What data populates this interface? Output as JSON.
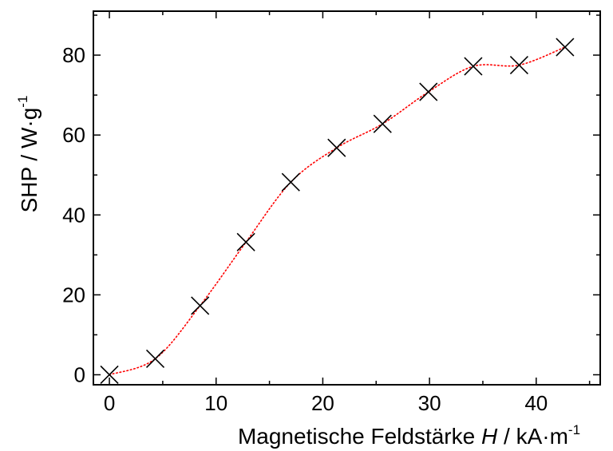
{
  "chart_data": {
    "type": "scatter",
    "x_label": {
      "text": "Magnetische Feldstärke ",
      "italic": "H",
      "unit": " / kA·m",
      "sup": "-1"
    },
    "y_label": {
      "text": "SHP / W·g",
      "sup": "-1"
    },
    "xlim": [
      -1.5,
      46
    ],
    "ylim": [
      -2.5,
      91
    ],
    "x_ticks": [
      0,
      10,
      20,
      30,
      40
    ],
    "y_ticks": [
      0,
      20,
      40,
      60,
      80
    ],
    "series": [
      {
        "marker": "x",
        "color": "#000000",
        "x": [
          0,
          4.3,
          8.5,
          12.8,
          17.0,
          21.3,
          25.6,
          29.9,
          34.1,
          38.4,
          42.7
        ],
        "y": [
          0,
          4.0,
          17.3,
          33.2,
          48.2,
          56.8,
          62.8,
          70.8,
          77.2,
          77.5,
          82.0
        ]
      },
      {
        "line": "dotted",
        "color": "#ff0000",
        "x": [
          0,
          4.3,
          8.5,
          12.8,
          17.0,
          21.3,
          25.6,
          29.9,
          34.1,
          38.4,
          42.7
        ],
        "y": [
          0,
          4.0,
          17.3,
          33.2,
          48.2,
          56.8,
          62.8,
          70.8,
          77.2,
          77.5,
          82.0
        ]
      }
    ],
    "grid": false,
    "legend": "none"
  }
}
